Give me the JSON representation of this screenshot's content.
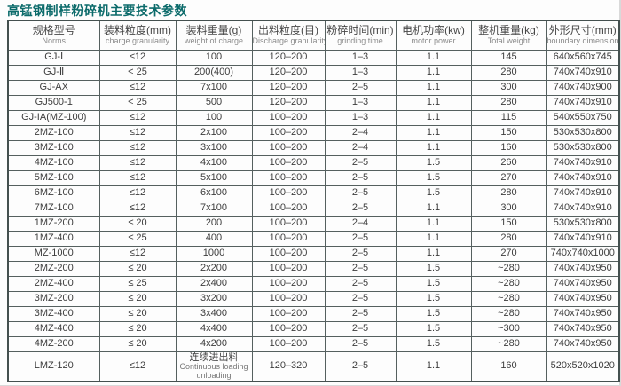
{
  "title": "高锰钢制样粉碎机主要技术参数",
  "colors": {
    "title_text": "#0c6b6b",
    "table_border": "#55605f",
    "cell_text": "#3d3d3d",
    "subheader_text": "#8b8b8b"
  },
  "table": {
    "columns": [
      {
        "zh": "规格型号",
        "en": "Norms"
      },
      {
        "zh": "装料粒度(mm)",
        "en": "charge granularity"
      },
      {
        "zh": "装料重量(g)",
        "en": "weight of charge"
      },
      {
        "zh": "出料粒度(目)",
        "en": "Discharge granularity"
      },
      {
        "zh": "粉碎时间(min)",
        "en": "grinding time"
      },
      {
        "zh": "电机功率(kw)",
        "en": "motor power"
      },
      {
        "zh": "整机重量(kg)",
        "en": "Total weight"
      },
      {
        "zh": "外形尺寸(mm)",
        "en": "boundary dimension"
      }
    ],
    "rows": [
      [
        "GJ-Ⅰ",
        "≤12",
        "100",
        "120–200",
        "1–3",
        "1.1",
        "145",
        "640x560x745"
      ],
      [
        "GJ-Ⅱ",
        "< 25",
        "200(400)",
        "120–200",
        "1–3",
        "1.1",
        "280",
        "740x740x910"
      ],
      [
        "GJ-AX",
        "≤12",
        "7x100",
        "120–200",
        "2–5",
        "1.1",
        "300",
        "740x740x900"
      ],
      [
        "GJ500-1",
        "< 25",
        "500",
        "120–200",
        "1–3",
        "1.1",
        "280",
        "740x740x910"
      ],
      [
        "GJ-IA(MZ-100)",
        "≤12",
        "100",
        "100–200",
        "1–3",
        "1.1",
        "115",
        "540x550x750"
      ],
      [
        "2MZ-100",
        "≤12",
        "2x100",
        "100–200",
        "2–4",
        "1.1",
        "150",
        "530x530x800"
      ],
      [
        "3MZ-100",
        "≤12",
        "3x100",
        "100–200",
        "2–4",
        "1.1",
        "160",
        "530x530x800"
      ],
      [
        "4MZ-100",
        "≤12",
        "4x100",
        "100–200",
        "2–5",
        "1.5",
        "260",
        "740x740x910"
      ],
      [
        "5MZ-100",
        "≤12",
        "5x100",
        "100–200",
        "2–5",
        "1.5",
        "270",
        "740x740x910"
      ],
      [
        "6MZ-100",
        "≤12",
        "6x100",
        "100–200",
        "2–5",
        "1.5",
        "280",
        "740x740x910"
      ],
      [
        "7MZ-100",
        "≤12",
        "7x100",
        "100–200",
        "2–5",
        "1.1",
        "300",
        "740x740x910"
      ],
      [
        "1MZ-200",
        "≤ 20",
        "200",
        "100–200",
        "2–4",
        "1.1",
        "150",
        "530x530x800"
      ],
      [
        "1MZ-400",
        "≤ 25",
        "400",
        "100–200",
        "2–5",
        "1.1",
        "280",
        "740x740x910"
      ],
      [
        "MZ-1000",
        "≤12",
        "1000",
        "100–200",
        "2–5",
        "1.1",
        "270",
        "740x740x1000"
      ],
      [
        "2MZ-200",
        "≤ 20",
        "2x200",
        "100–200",
        "2–5",
        "1.5",
        "~280",
        "740x740x950"
      ],
      [
        "2MZ-400",
        "≤ 25",
        "2x400",
        "100–200",
        "2–5",
        "1.5",
        "~280",
        "740x740x950"
      ],
      [
        "3MZ-200",
        "≤ 20",
        "3x200",
        "100–200",
        "2–5",
        "1.5",
        "~280",
        "740x740x950"
      ],
      [
        "3MZ-400",
        "≤ 20",
        "3x400",
        "100–200",
        "2–5",
        "1.5",
        "~280",
        "740x740x950"
      ],
      [
        "4MZ-400",
        "≤ 20",
        "4x400",
        "100–200",
        "2–5",
        "1.5",
        "~300",
        "740x740x950"
      ],
      [
        "4MZ-200",
        "≤ 20",
        "4x200",
        "100–200",
        "2–5",
        "1.5",
        "~280",
        "740x740x950"
      ],
      [
        "LMZ-120",
        "≤12",
        {
          "zh": "连续进出料",
          "en": "Continuous loading unloading"
        },
        "120–320",
        "2–5",
        "1.1",
        "160",
        "520x520x1020"
      ]
    ]
  }
}
